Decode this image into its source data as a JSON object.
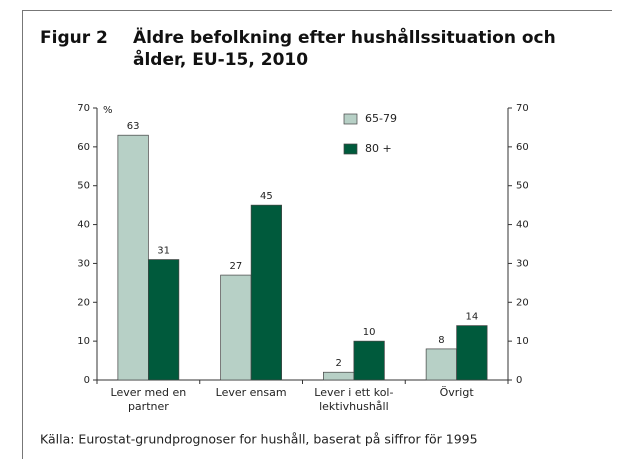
{
  "chart_data": {
    "type": "bar",
    "figure_label": "Figur 2",
    "title_lines": [
      "Äldre befolkning efter hushållssituation och",
      "ålder, EU-15, 2010"
    ],
    "y_unit": "%",
    "categories": [
      [
        "Lever med en",
        "partner"
      ],
      [
        "Lever ensam"
      ],
      [
        "Lever i ett kol-",
        "lektivhushåll"
      ],
      [
        "Övrigt"
      ]
    ],
    "series": [
      {
        "name": "65-79",
        "color": "#b7d0c6",
        "values": [
          63,
          27,
          2,
          8
        ]
      },
      {
        "name": "80 +",
        "color": "#005a3c",
        "values": [
          31,
          45,
          10,
          14
        ]
      }
    ],
    "ylim": [
      0,
      70
    ],
    "yticks": [
      0,
      10,
      20,
      30,
      40,
      50,
      60,
      70
    ],
    "source": "Källa: Eurostat-grundprognoser for hushåll, baserat på siffror för 1995"
  }
}
